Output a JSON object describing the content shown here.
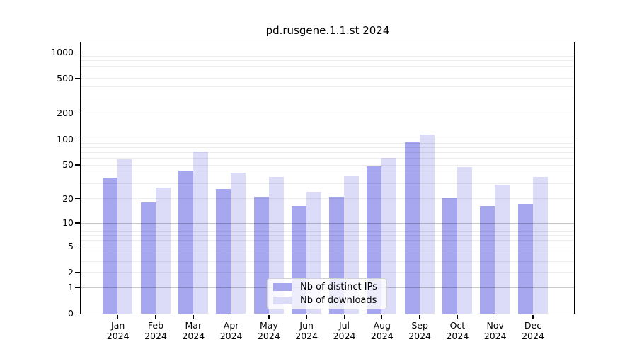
{
  "chart_data": {
    "type": "bar",
    "title": "pd.rusgene.1.1.st 2024",
    "categories": [
      "Jan",
      "Feb",
      "Mar",
      "Apr",
      "May",
      "Jun",
      "Jul",
      "Aug",
      "Sep",
      "Oct",
      "Nov",
      "Dec"
    ],
    "x_year": "2024",
    "series": [
      {
        "name": "Nb of distinct IPs",
        "color": "#a7a7f0",
        "values": [
          35,
          18,
          43,
          26,
          21,
          16,
          21,
          48,
          92,
          20,
          16,
          17
        ]
      },
      {
        "name": "Nb of downloads",
        "color": "#dcdcf8",
        "values": [
          58,
          27,
          72,
          40,
          36,
          24,
          37,
          60,
          112,
          47,
          29,
          36
        ]
      }
    ],
    "xlabel": "",
    "ylabel": "",
    "y_scale": "log1p",
    "ylim": [
      0,
      1285
    ],
    "y_ticks": [
      1000,
      500,
      200,
      100,
      50,
      20,
      10,
      5,
      2,
      1,
      0
    ],
    "grid": "on",
    "grid_minor_values": [
      2,
      3,
      4,
      5,
      6,
      7,
      8,
      9,
      20,
      30,
      40,
      50,
      60,
      70,
      80,
      90,
      200,
      300,
      400,
      500,
      600,
      700,
      800,
      900
    ],
    "grid_major_values": [
      1,
      10,
      100,
      1000
    ],
    "legend_position": "bottom-center"
  },
  "colors": {
    "axis": "#000000",
    "grid_major": "rgba(0,0,0,0.22)",
    "grid_minor": "rgba(0,0,0,0.07)",
    "background": "#ffffff"
  }
}
